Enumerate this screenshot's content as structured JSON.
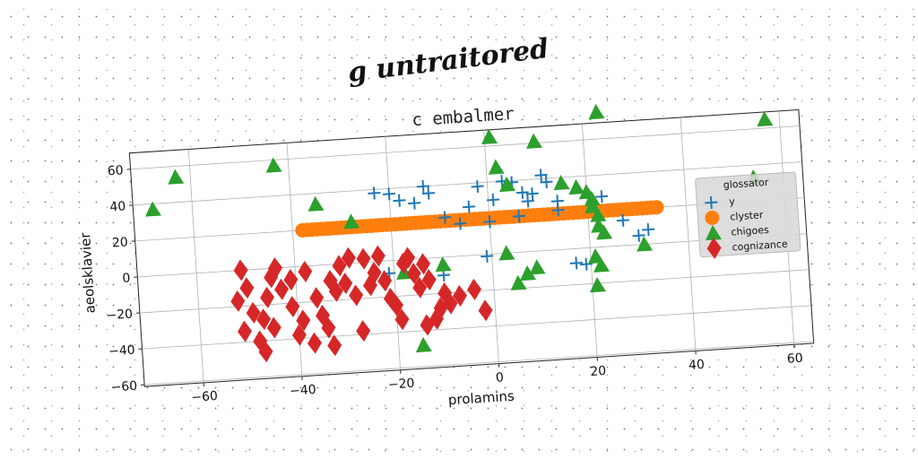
{
  "figure": {
    "suptitle": "g untraitored"
  },
  "chart_data": {
    "type": "scatter",
    "title": "c embalmer",
    "xlabel": "prolamins",
    "ylabel": "aeolsklavier",
    "xlim": [
      -72,
      64
    ],
    "ylim": [
      -61,
      69
    ],
    "xticks": [
      -60,
      -40,
      -20,
      0,
      20,
      40,
      60
    ],
    "yticks": [
      -60,
      -40,
      -20,
      0,
      20,
      40,
      60
    ],
    "grid": true,
    "legend": {
      "title": "glossator",
      "placement": "right"
    },
    "series": [
      {
        "name": "y",
        "marker": "plus",
        "color": "#1f77b4",
        "points": [
          [
            -23,
            38
          ],
          [
            -20,
            37
          ],
          [
            -18,
            33
          ],
          [
            -15,
            31
          ],
          [
            -13,
            40
          ],
          [
            -12,
            36
          ],
          [
            -4,
            27
          ],
          [
            -2,
            38
          ],
          [
            1,
            30
          ],
          [
            3,
            40
          ],
          [
            5,
            39
          ],
          [
            7,
            33
          ],
          [
            8,
            28
          ],
          [
            9,
            32
          ],
          [
            11,
            42
          ],
          [
            12,
            38
          ],
          [
            14,
            27
          ],
          [
            23,
            28
          ],
          [
            27,
            14
          ],
          [
            30,
            5
          ],
          [
            -9,
            22
          ],
          [
            -6,
            18
          ],
          [
            0,
            18
          ],
          [
            6,
            20
          ],
          [
            14,
            22
          ],
          [
            19,
            -9
          ],
          [
            17,
            -8
          ],
          [
            -21,
            -7
          ],
          [
            -10,
            -10
          ],
          [
            -1,
            -1
          ],
          [
            32,
            8
          ]
        ]
      },
      {
        "name": "clyster",
        "marker": "circle",
        "color": "#ff7f0e",
        "x_from": -38,
        "x_to": 34,
        "x_step": 1,
        "y_constant": 20
      },
      {
        "name": "chigoes",
        "marker": "triangle",
        "color": "#2ca02c",
        "points": [
          [
            -68,
            37
          ],
          [
            -63,
            54
          ],
          [
            -43,
            57
          ],
          [
            -35,
            34
          ],
          [
            -28,
            23
          ],
          [
            -18,
            -7
          ],
          [
            -10,
            -4
          ],
          [
            -15,
            -48
          ],
          [
            1,
            65
          ],
          [
            2,
            48
          ],
          [
            4,
            38
          ],
          [
            5,
            -17
          ],
          [
            7,
            -12
          ],
          [
            9,
            -9
          ],
          [
            10,
            61
          ],
          [
            15,
            37
          ],
          [
            18,
            34
          ],
          [
            20,
            31
          ],
          [
            21,
            27
          ],
          [
            21,
            23
          ],
          [
            22,
            18
          ],
          [
            22,
            12
          ],
          [
            23,
            8
          ],
          [
            21,
            -5
          ],
          [
            22,
            -10
          ],
          [
            21,
            -21
          ],
          [
            23,
            75
          ],
          [
            31,
            0
          ],
          [
            54,
            33
          ],
          [
            57,
            65
          ],
          [
            3,
            0
          ]
        ]
      },
      {
        "name": "cognizance",
        "marker": "diamond",
        "color": "#d62728",
        "points": [
          [
            -51,
            0
          ],
          [
            -50,
            -10
          ],
          [
            -52,
            -17
          ],
          [
            -49,
            -24
          ],
          [
            -51,
            -34
          ],
          [
            -48,
            -40
          ],
          [
            -47,
            -28
          ],
          [
            -46,
            -16
          ],
          [
            -45,
            -5
          ],
          [
            -44,
            0
          ],
          [
            -43,
            -12
          ],
          [
            -41,
            -22
          ],
          [
            -39,
            -30
          ],
          [
            -40,
            -38
          ],
          [
            -41,
            -7
          ],
          [
            -38,
            -3
          ],
          [
            -36,
            -18
          ],
          [
            -35,
            -28
          ],
          [
            -37,
            -43
          ],
          [
            -34,
            -35
          ],
          [
            -33,
            -9
          ],
          [
            -32,
            -15
          ],
          [
            -31,
            -1
          ],
          [
            -29,
            3
          ],
          [
            -28,
            -18
          ],
          [
            -27,
            -38
          ],
          [
            -26,
            2
          ],
          [
            -25,
            -13
          ],
          [
            -24,
            -6
          ],
          [
            -23,
            3
          ],
          [
            -22,
            -11
          ],
          [
            -21,
            -21
          ],
          [
            -20,
            -25
          ],
          [
            -19,
            -33
          ],
          [
            -18,
            -2
          ],
          [
            -17,
            1
          ],
          [
            -16,
            -8
          ],
          [
            -15,
            -16
          ],
          [
            -14,
            -3
          ],
          [
            -13,
            -12
          ],
          [
            -14,
            -37
          ],
          [
            -12,
            -34
          ],
          [
            -11,
            -28
          ],
          [
            -10,
            -20
          ],
          [
            -9,
            -26
          ],
          [
            -7,
            -22
          ],
          [
            -4,
            -19
          ],
          [
            -2,
            -31
          ],
          [
            -47,
            -46
          ],
          [
            -33,
            -45
          ],
          [
            -30,
            -11
          ],
          [
            -45,
            -33
          ]
        ]
      }
    ]
  }
}
